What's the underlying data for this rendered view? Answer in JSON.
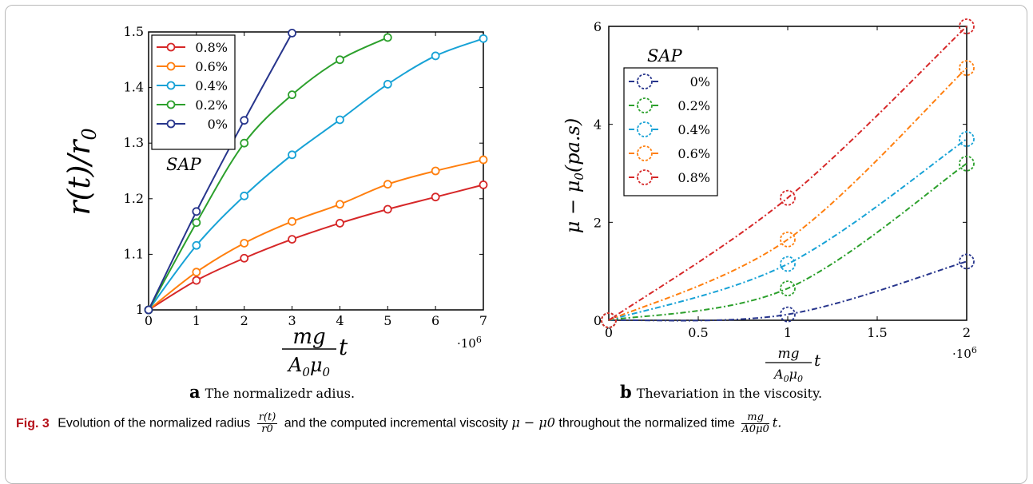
{
  "chart_data": [
    {
      "type": "line",
      "panel": "a",
      "xlabel": "mg/(A0μ0) t",
      "ylabel": "r(t)/r0",
      "x_multiplier": "·10^6",
      "xlim": [
        0,
        7
      ],
      "ylim": [
        1,
        1.5
      ],
      "xticks": [
        "0",
        "1",
        "2",
        "3",
        "4",
        "5",
        "6",
        "7"
      ],
      "yticks": [
        "1",
        "1.1",
        "1.2",
        "1.3",
        "1.4",
        "1.5"
      ],
      "legend_title": "SAP",
      "legend_position": "top-left",
      "series": [
        {
          "name": "0.8%",
          "color": "#d62728",
          "x": [
            0,
            1,
            2,
            3,
            4,
            5,
            6,
            7
          ],
          "y": [
            1.0,
            1.053,
            1.093,
            1.127,
            1.156,
            1.181,
            1.203,
            1.225
          ]
        },
        {
          "name": "0.6%",
          "color": "#ff7f0e",
          "x": [
            0,
            1,
            2,
            3,
            4,
            5,
            6,
            7
          ],
          "y": [
            1.0,
            1.068,
            1.12,
            1.159,
            1.19,
            1.226,
            1.25,
            1.27
          ]
        },
        {
          "name": "0.4%",
          "color": "#17a2d6",
          "x": [
            0,
            1,
            2,
            3,
            4,
            5,
            6,
            7
          ],
          "y": [
            1.0,
            1.116,
            1.205,
            1.279,
            1.342,
            1.406,
            1.457,
            1.488
          ]
        },
        {
          "name": "0.2%",
          "color": "#2ca02c",
          "x": [
            0,
            1,
            2,
            3,
            4,
            5
          ],
          "y": [
            1.0,
            1.157,
            1.3,
            1.387,
            1.45,
            1.49
          ]
        },
        {
          "name": "0%",
          "color": "#27358c",
          "x": [
            0,
            1,
            2,
            3
          ],
          "y": [
            1.0,
            1.177,
            1.341,
            1.498
          ]
        }
      ]
    },
    {
      "type": "line",
      "panel": "b",
      "xlabel": "mg/(A0μ0) t",
      "ylabel": "μ − μ0(pa.s)",
      "x_multiplier": "·10^6",
      "xlim": [
        0,
        2
      ],
      "ylim": [
        0,
        6
      ],
      "xticks": [
        "0",
        "0.5",
        "1",
        "1.5",
        "2"
      ],
      "yticks": [
        "0",
        "2",
        "4",
        "6"
      ],
      "legend_title": "SAP",
      "legend_position": "top-left",
      "series": [
        {
          "name": "0%",
          "color": "#27358c",
          "x": [
            0,
            1,
            2
          ],
          "y": [
            0,
            0.12,
            1.2
          ]
        },
        {
          "name": "0.2%",
          "color": "#2ca02c",
          "x": [
            0,
            1,
            2
          ],
          "y": [
            0,
            0.65,
            3.2
          ]
        },
        {
          "name": "0.4%",
          "color": "#17a2d6",
          "x": [
            0,
            1,
            2
          ],
          "y": [
            0,
            1.15,
            3.7
          ]
        },
        {
          "name": "0.6%",
          "color": "#ff7f0e",
          "x": [
            0,
            1,
            2
          ],
          "y": [
            0,
            1.65,
            5.15
          ]
        },
        {
          "name": "0.8%",
          "color": "#d62728",
          "x": [
            0,
            1,
            2
          ],
          "y": [
            0,
            2.5,
            6.0
          ]
        }
      ]
    }
  ],
  "subcaptions": {
    "a_letter": "a",
    "a_text": "The normalizedr adius.",
    "b_letter": "b",
    "b_text": "Thevariation in the viscosity."
  },
  "caption": {
    "label": "Fig. 3",
    "text_1": "Evolution of the normalized radius",
    "frac1_num": "r(t)",
    "frac1_den": "r0",
    "text_2": "and the computed incremental viscosity",
    "mu_expr": "μ − μ0",
    "text_3": "throughout the normalized time",
    "frac2_num": "mg",
    "frac2_den": "A0μ0",
    "t": "t."
  }
}
